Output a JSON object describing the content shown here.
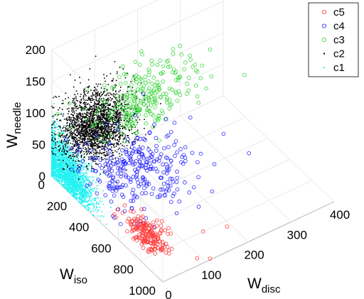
{
  "chart_data": {
    "type": "scatter",
    "projection": "3d",
    "grid": true,
    "legend_position": "top-right",
    "axes": {
      "x": {
        "label": "W",
        "label_sub": "disc",
        "range": [
          0,
          400
        ],
        "ticks": [
          "0",
          "100",
          "200",
          "300",
          "400"
        ]
      },
      "y": {
        "label": "W",
        "label_sub": "iso",
        "range": [
          0,
          1000
        ],
        "ticks": [
          "0",
          "200",
          "400",
          "600",
          "800",
          "1000"
        ]
      },
      "z": {
        "label": "W",
        "label_sub": "needle",
        "range": [
          0,
          200
        ],
        "ticks": [
          "0",
          "50",
          "100",
          "150",
          "200"
        ]
      }
    },
    "series": [
      {
        "name": "c5",
        "color": "#ff3b3b",
        "marker": "open-circle",
        "count": 180,
        "center": {
          "disc": 30,
          "iso": 740,
          "needle": 22
        },
        "spread": {
          "disc": 12,
          "iso": 90,
          "needle": 10
        },
        "outliers": [
          {
            "disc": 110,
            "iso": 1000,
            "needle": 2
          },
          {
            "disc": 80,
            "iso": 1000,
            "needle": 12
          },
          {
            "disc": 150,
            "iso": 1000,
            "needle": 40
          },
          {
            "disc": 120,
            "iso": 900,
            "needle": 25
          }
        ]
      },
      {
        "name": "c4",
        "color": "#2b2bff",
        "marker": "open-circle",
        "count": 300,
        "center": {
          "disc": 95,
          "iso": 430,
          "needle": 45
        },
        "spread": {
          "disc": 60,
          "iso": 140,
          "needle": 22
        }
      },
      {
        "name": "c3",
        "color": "#3ed63e",
        "marker": "open-circle",
        "count": 260,
        "center": {
          "disc": 190,
          "iso": 90,
          "needle": 75
        },
        "spread": {
          "disc": 65,
          "iso": 60,
          "needle": 30
        }
      },
      {
        "name": "c2",
        "color": "#000000",
        "marker": "dot",
        "count": 2200,
        "center": {
          "disc": 80,
          "iso": 75,
          "needle": 65
        },
        "spread": {
          "disc": 38,
          "iso": 85,
          "needle": 28
        }
      },
      {
        "name": "c1",
        "color": "#22f2f2",
        "marker": "dot",
        "count": 2600,
        "center": {
          "disc": 2,
          "iso": 120,
          "needle": 25
        },
        "spread": {
          "disc": 3,
          "iso": 120,
          "needle": 25
        }
      }
    ]
  }
}
